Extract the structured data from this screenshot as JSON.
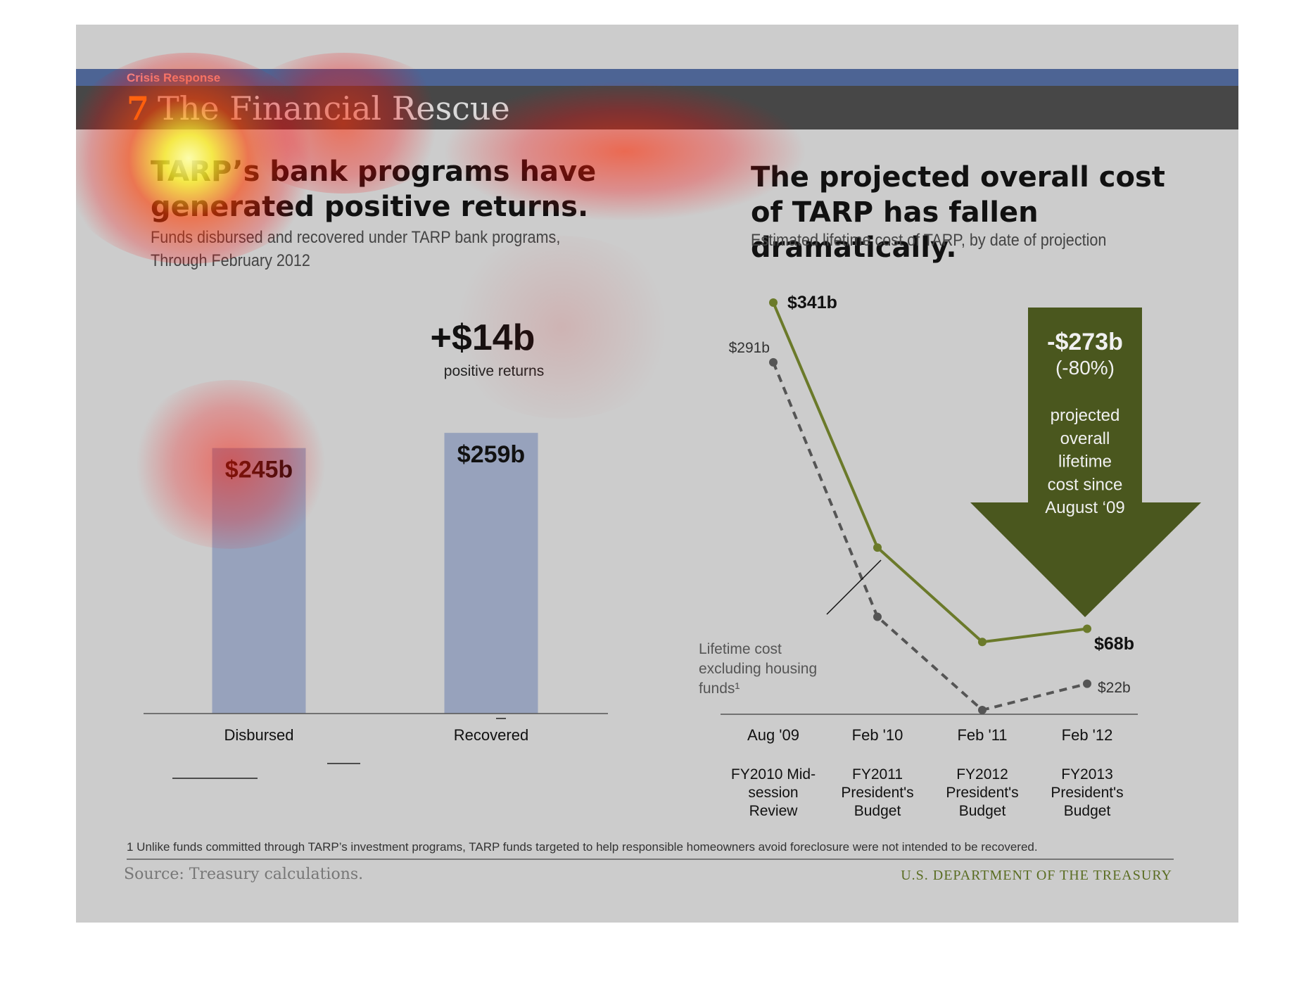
{
  "section_label": "Crisis Response",
  "slide": {
    "number": "7",
    "title": "The Financial Rescue"
  },
  "left_panel": {
    "headline": "TARP’s bank programs have generated positive returns.",
    "subtitle": "Funds disbursed and recovered under TARP bank programs, Through February 2012"
  },
  "right_panel": {
    "headline": "The projected overall cost of TARP has fallen dramatically.",
    "subtitle": "Estimated lifetime cost of TARP, by date of projection"
  },
  "chart_data": [
    {
      "type": "bar",
      "categories": [
        "Disbursed",
        "Recovered"
      ],
      "values": [
        245,
        259
      ],
      "data_labels": [
        "$245b",
        "$259b"
      ],
      "ylim": [
        0,
        300
      ],
      "bar_color": "#97a2bc",
      "annotation": {
        "value": "+$14b",
        "text": "positive returns"
      }
    },
    {
      "type": "line",
      "x": [
        "Aug '09",
        "Feb '10",
        "Feb '11",
        "Feb '12"
      ],
      "x_sublabels": [
        "FY2010 Mid-session Review",
        "FY2011 President's Budget",
        "FY2012 President's Budget",
        "FY2013 President's Budget"
      ],
      "ylim": [
        0,
        341
      ],
      "series": [
        {
          "values": [
            341,
            136,
            57,
            68
          ],
          "style": "solid",
          "color": "#6b7a2a",
          "labels": [
            "$341b",
            "",
            "",
            "$68b"
          ]
        },
        {
          "values": [
            291,
            78,
            0,
            22
          ],
          "style": "dashed",
          "color": "#555555",
          "labels": [
            "$291b",
            "",
            "",
            "$22b"
          ]
        }
      ],
      "series_annotation": "Lifetime cost excluding housing funds¹",
      "arrow_callout": {
        "value": "-$273b",
        "percent": "(-80%)",
        "text": [
          "projected",
          "overall",
          "lifetime",
          "cost since",
          "August ‘09"
        ],
        "color": "#4a571e"
      }
    }
  ],
  "footnote": "1 Unlike funds committed through TARP’s investment programs, TARP funds targeted to help responsible homeowners avoid foreclosure were not intended to be recovered.",
  "source": "Source: Treasury calculations.",
  "agency": "U.S. DEPARTMENT OF THE TREASURY"
}
